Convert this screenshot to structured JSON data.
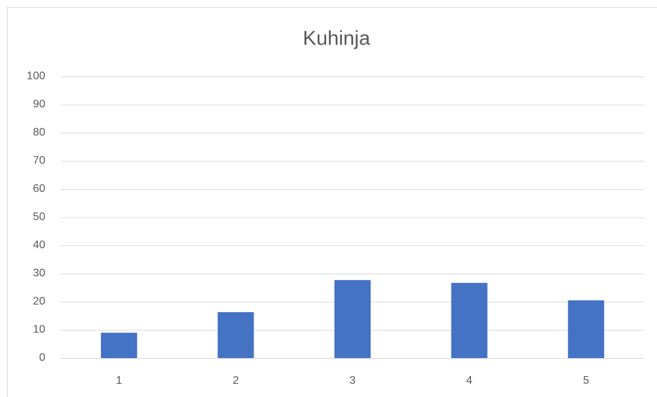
{
  "chart_data": {
    "type": "bar",
    "title": "Kuhinja",
    "categories": [
      "1",
      "2",
      "3",
      "4",
      "5"
    ],
    "values": [
      9,
      16.3,
      27.7,
      26.7,
      20.5
    ],
    "color": "#4472c4",
    "ylim": [
      0,
      100
    ],
    "yticks": [
      0,
      10,
      20,
      30,
      40,
      50,
      60,
      70,
      80,
      90,
      100
    ],
    "grid": true
  }
}
